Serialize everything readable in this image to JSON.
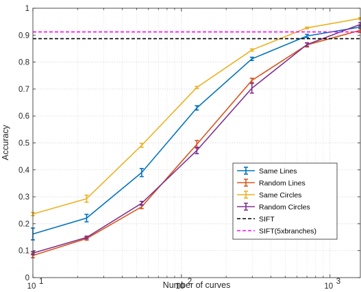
{
  "chart_data": {
    "type": "line",
    "title": "",
    "xlabel": "Number of curves",
    "ylabel": "Accuracy",
    "xscale": "log",
    "xlim": [
      10,
      1600
    ],
    "ylim": [
      0,
      1
    ],
    "grid": true,
    "legend_position": "lower-right",
    "x_ticks": [
      {
        "value": 10,
        "base": "10",
        "exp": "1"
      },
      {
        "value": 100,
        "base": "10",
        "exp": "2"
      },
      {
        "value": 1000,
        "base": "10",
        "exp": "3"
      }
    ],
    "y_ticks": [
      {
        "value": 0,
        "label": "0"
      },
      {
        "value": 0.1,
        "label": "0.1"
      },
      {
        "value": 0.2,
        "label": "0.2"
      },
      {
        "value": 0.3,
        "label": "0.3"
      },
      {
        "value": 0.4,
        "label": "0.4"
      },
      {
        "value": 0.5,
        "label": "0.5"
      },
      {
        "value": 0.6,
        "label": "0.6"
      },
      {
        "value": 0.7,
        "label": "0.7"
      },
      {
        "value": 0.8,
        "label": "0.8"
      },
      {
        "value": 0.9,
        "label": "0.9"
      },
      {
        "value": 1,
        "label": "1"
      }
    ],
    "x": [
      10,
      23,
      54,
      127,
      298,
      700,
      1600
    ],
    "series": [
      {
        "name": "Same Lines",
        "color": "#0072BD",
        "style": "errorbar",
        "values": [
          0.162,
          0.221,
          0.39,
          0.63,
          0.812,
          0.897,
          0.93
        ],
        "errors": [
          0.022,
          0.014,
          0.015,
          0.008,
          0.006,
          0.006,
          0.006
        ]
      },
      {
        "name": "Random Lines",
        "color": "#D95319",
        "style": "errorbar",
        "values": [
          0.082,
          0.145,
          0.263,
          0.495,
          0.732,
          0.864,
          0.918
        ],
        "errors": [
          0.008,
          0.006,
          0.007,
          0.014,
          0.008,
          0.008,
          0.008
        ]
      },
      {
        "name": "Same Circles",
        "color": "#EDB120",
        "style": "errorbar",
        "values": [
          0.236,
          0.293,
          0.491,
          0.706,
          0.845,
          0.927,
          0.962
        ],
        "errors": [
          0.006,
          0.013,
          0.007,
          0.004,
          0.004,
          0.003,
          0.003
        ]
      },
      {
        "name": "Random Circles",
        "color": "#7E2F8E",
        "style": "errorbar",
        "values": [
          0.091,
          0.149,
          0.276,
          0.472,
          0.703,
          0.865,
          0.94
        ],
        "errors": [
          0.006,
          0.005,
          0.007,
          0.012,
          0.018,
          0.006,
          0.006
        ]
      },
      {
        "name": "SIFT",
        "color": "#000000",
        "style": "dashed",
        "value": 0.887
      },
      {
        "name": "SIFT(5xbranches)",
        "color": "#FF00FF",
        "style": "dashed",
        "value": 0.912
      }
    ]
  }
}
